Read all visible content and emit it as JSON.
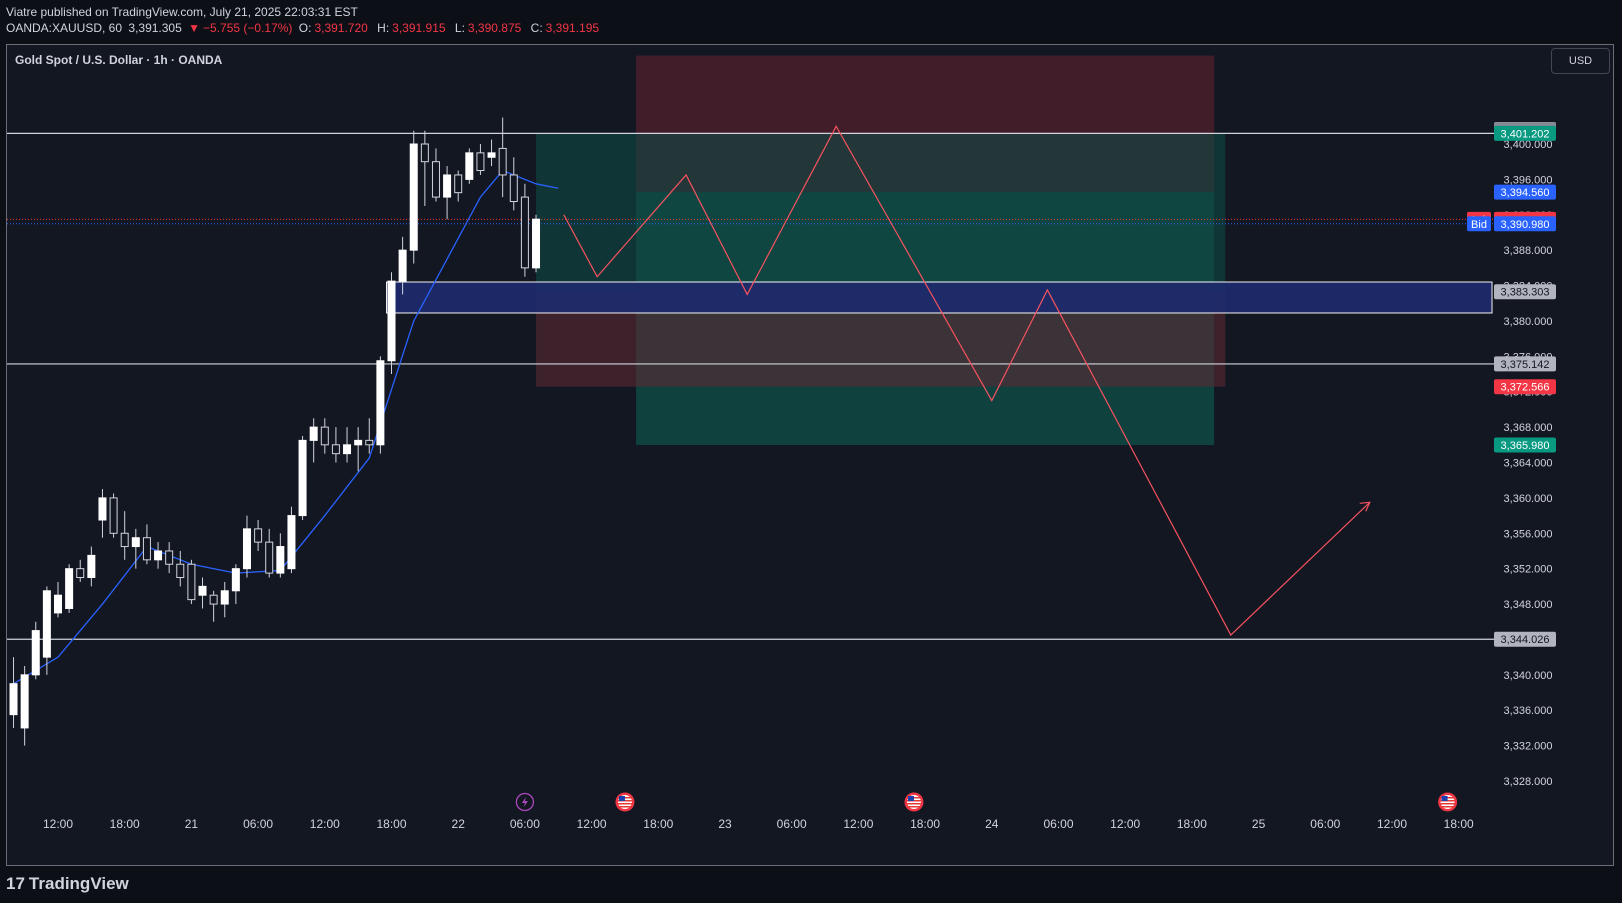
{
  "header": {
    "published_line": "Viatre published on TradingView.com, July 21, 2025 22:03:31 EST",
    "symbol": "OANDA:XAUUSD, 60",
    "price": "3,391.305",
    "change_arrow": "▼",
    "change": "−5.755 (−0.17%)",
    "open_label": "O:",
    "open": "3,391.720",
    "high_label": "H:",
    "high": "3,391.915",
    "low_label": "L:",
    "low": "3,390.875",
    "close_label": "C:",
    "close": "3,391.195"
  },
  "legend": "Gold Spot / U.S. Dollar · 1h · OANDA",
  "currency_button": "USD",
  "footer": {
    "logo": "17",
    "brand": "TradingView"
  },
  "colors": {
    "background": "#131722",
    "up_candle": "#ffffff",
    "ma_line": "#2962ff",
    "path_line": "#f7525f",
    "zone_fill": "#1e2b6b",
    "stop_fill": "#4a1f2a",
    "target_fill": "#0f4a44",
    "ask": "#f23645",
    "bid": "#2962ff",
    "target_label": "#089981"
  },
  "chart_data": {
    "type": "candlestick",
    "symbol": "XAUUSD",
    "timeframe": "1h",
    "ylim": [
      3326,
      3410
    ],
    "y_ticks": [
      3328,
      3332,
      3336,
      3340,
      3344,
      3348,
      3352,
      3356,
      3360,
      3364,
      3368,
      3372,
      3376,
      3380,
      3384,
      3388,
      3392,
      3396,
      3400
    ],
    "x_tick_labels": [
      "12:00",
      "18:00",
      "21",
      "06:00",
      "12:00",
      "18:00",
      "22",
      "06:00",
      "12:00",
      "18:00",
      "23",
      "06:00",
      "12:00",
      "18:00",
      "24",
      "06:00",
      "12:00",
      "18:00",
      "25",
      "06:00",
      "12:00",
      "18:00"
    ],
    "x_ticks_hour_index": [
      0,
      6,
      12,
      18,
      24,
      30,
      36,
      42,
      48,
      54,
      60,
      66,
      72,
      78,
      84,
      90,
      96,
      102,
      108,
      114,
      120,
      126
    ],
    "candles": [
      {
        "t": -4,
        "o": 3335.5,
        "h": 3342.0,
        "l": 3334.0,
        "c": 3339.0
      },
      {
        "t": -3,
        "o": 3334.0,
        "h": 3341.0,
        "l": 3332.0,
        "c": 3340.0
      },
      {
        "t": -2,
        "o": 3340.0,
        "h": 3346.0,
        "l": 3339.5,
        "c": 3345.0
      },
      {
        "t": -1,
        "o": 3342.0,
        "h": 3350.0,
        "l": 3340.0,
        "c": 3349.5
      },
      {
        "t": 0,
        "o": 3347.0,
        "h": 3350.5,
        "l": 3346.5,
        "c": 3349.0
      },
      {
        "t": 1,
        "o": 3347.5,
        "h": 3352.5,
        "l": 3347.0,
        "c": 3352.0
      },
      {
        "t": 2,
        "o": 3352.0,
        "h": 3353.0,
        "l": 3350.5,
        "c": 3351.0
      },
      {
        "t": 3,
        "o": 3351.0,
        "h": 3354.5,
        "l": 3350.0,
        "c": 3353.5
      },
      {
        "t": 4,
        "o": 3357.5,
        "h": 3361.0,
        "l": 3355.5,
        "c": 3360.0
      },
      {
        "t": 5,
        "o": 3360.0,
        "h": 3360.5,
        "l": 3355.5,
        "c": 3356.0
      },
      {
        "t": 6,
        "o": 3356.0,
        "h": 3358.5,
        "l": 3353.0,
        "c": 3354.5
      },
      {
        "t": 7,
        "o": 3354.5,
        "h": 3356.5,
        "l": 3352.0,
        "c": 3355.5
      },
      {
        "t": 8,
        "o": 3355.5,
        "h": 3357.0,
        "l": 3352.5,
        "c": 3353.0
      },
      {
        "t": 9,
        "o": 3353.0,
        "h": 3355.0,
        "l": 3352.0,
        "c": 3354.0
      },
      {
        "t": 10,
        "o": 3354.0,
        "h": 3355.0,
        "l": 3351.5,
        "c": 3352.5
      },
      {
        "t": 11,
        "o": 3352.5,
        "h": 3354.0,
        "l": 3350.0,
        "c": 3351.0
      },
      {
        "t": 12,
        "o": 3352.5,
        "h": 3353.0,
        "l": 3348.0,
        "c": 3348.5
      },
      {
        "t": 13,
        "o": 3349.0,
        "h": 3351.0,
        "l": 3347.5,
        "c": 3350.0
      },
      {
        "t": 14,
        "o": 3349.0,
        "h": 3349.5,
        "l": 3346.0,
        "c": 3348.0
      },
      {
        "t": 15,
        "o": 3348.0,
        "h": 3350.5,
        "l": 3346.5,
        "c": 3349.5
      },
      {
        "t": 16,
        "o": 3349.5,
        "h": 3352.5,
        "l": 3348.0,
        "c": 3352.0
      },
      {
        "t": 17,
        "o": 3352.0,
        "h": 3358.0,
        "l": 3351.0,
        "c": 3356.5
      },
      {
        "t": 18,
        "o": 3356.5,
        "h": 3357.5,
        "l": 3354.0,
        "c": 3355.0
      },
      {
        "t": 19,
        "o": 3355.0,
        "h": 3356.5,
        "l": 3351.0,
        "c": 3351.5
      },
      {
        "t": 20,
        "o": 3351.5,
        "h": 3356.0,
        "l": 3351.0,
        "c": 3354.5
      },
      {
        "t": 21,
        "o": 3352.0,
        "h": 3359.0,
        "l": 3351.5,
        "c": 3358.0
      },
      {
        "t": 22,
        "o": 3358.0,
        "h": 3367.0,
        "l": 3357.5,
        "c": 3366.5
      },
      {
        "t": 23,
        "o": 3366.5,
        "h": 3369.0,
        "l": 3364.0,
        "c": 3368.0
      },
      {
        "t": 24,
        "o": 3368.0,
        "h": 3369.0,
        "l": 3365.0,
        "c": 3366.0
      },
      {
        "t": 25,
        "o": 3366.0,
        "h": 3368.0,
        "l": 3364.0,
        "c": 3365.0
      },
      {
        "t": 26,
        "o": 3365.0,
        "h": 3368.0,
        "l": 3364.0,
        "c": 3366.0
      },
      {
        "t": 27,
        "o": 3366.0,
        "h": 3368.0,
        "l": 3363.0,
        "c": 3366.5
      },
      {
        "t": 28,
        "o": 3366.5,
        "h": 3369.0,
        "l": 3365.0,
        "c": 3366.0
      },
      {
        "t": 29,
        "o": 3366.0,
        "h": 3376.0,
        "l": 3365.0,
        "c": 3375.5
      },
      {
        "t": 30,
        "o": 3375.5,
        "h": 3385.5,
        "l": 3374.0,
        "c": 3384.5
      },
      {
        "t": 31,
        "o": 3384.5,
        "h": 3389.5,
        "l": 3383.0,
        "c": 3388.0
      },
      {
        "t": 32,
        "o": 3388.0,
        "h": 3401.5,
        "l": 3386.5,
        "c": 3400.0
      },
      {
        "t": 33,
        "o": 3400.0,
        "h": 3401.5,
        "l": 3393.0,
        "c": 3398.0
      },
      {
        "t": 34,
        "o": 3398.0,
        "h": 3399.5,
        "l": 3393.5,
        "c": 3394.0
      },
      {
        "t": 35,
        "o": 3394.0,
        "h": 3397.5,
        "l": 3391.5,
        "c": 3396.5
      },
      {
        "t": 36,
        "o": 3396.5,
        "h": 3397.0,
        "l": 3393.5,
        "c": 3394.5
      },
      {
        "t": 37,
        "o": 3396.0,
        "h": 3399.5,
        "l": 3395.5,
        "c": 3399.0
      },
      {
        "t": 38,
        "o": 3399.0,
        "h": 3400.0,
        "l": 3396.5,
        "c": 3397.0
      },
      {
        "t": 39,
        "o": 3398.5,
        "h": 3400.5,
        "l": 3397.5,
        "c": 3399.0
      },
      {
        "t": 40,
        "o": 3399.5,
        "h": 3403.0,
        "l": 3394.0,
        "c": 3396.5
      },
      {
        "t": 41,
        "o": 3396.5,
        "h": 3398.5,
        "l": 3392.5,
        "c": 3393.5
      },
      {
        "t": 42,
        "o": 3394.0,
        "h": 3395.5,
        "l": 3385.0,
        "c": 3386.0
      },
      {
        "t": 43,
        "o": 3386.0,
        "h": 3392.0,
        "l": 3385.5,
        "c": 3391.5
      }
    ],
    "moving_average": [
      {
        "t": -4,
        "y": 3339.0
      },
      {
        "t": 0,
        "y": 3342.0
      },
      {
        "t": 4,
        "y": 3348.0
      },
      {
        "t": 8,
        "y": 3354.5
      },
      {
        "t": 12,
        "y": 3352.5
      },
      {
        "t": 16,
        "y": 3351.5
      },
      {
        "t": 20,
        "y": 3351.8
      },
      {
        "t": 24,
        "y": 3358.0
      },
      {
        "t": 28,
        "y": 3364.5
      },
      {
        "t": 32,
        "y": 3380.0
      },
      {
        "t": 35,
        "y": 3387.0
      },
      {
        "t": 38,
        "y": 3394.0
      },
      {
        "t": 40,
        "y": 3397.0
      },
      {
        "t": 43,
        "y": 3395.5
      },
      {
        "t": 45,
        "y": 3395.0
      }
    ],
    "horizontal_lines": [
      3401.202,
      3375.142,
      3344.026
    ],
    "demand_zone": {
      "from_t": 30,
      "to_t": 147,
      "top": 3384.4,
      "bottom": 3380.9
    },
    "position_1": {
      "from_t": 43,
      "to_t": 105,
      "target": 3401.202,
      "entry": 3383.303,
      "stop": 3372.566
    },
    "position_2": {
      "from_t": 52,
      "to_t": 104,
      "stop": 3410.0,
      "entry": 3394.56,
      "target": 3365.98
    },
    "projection_path": [
      {
        "t": 45.5,
        "y": 3392.0
      },
      {
        "t": 48.5,
        "y": 3385.0
      },
      {
        "t": 56.5,
        "y": 3396.5
      },
      {
        "t": 62,
        "y": 3383.0
      },
      {
        "t": 70,
        "y": 3402.0
      },
      {
        "t": 84,
        "y": 3371.0
      },
      {
        "t": 89,
        "y": 3383.5
      },
      {
        "t": 105.5,
        "y": 3344.5
      },
      {
        "t": 118,
        "y": 3359.5
      }
    ],
    "price_labels": [
      {
        "text": "3,401.640",
        "y": 3401.64,
        "color": "#b2b5be",
        "text_color": "#131722"
      },
      {
        "text": "3,401.629",
        "y": 3401.629,
        "color": "#868993",
        "text_color": "#131722"
      },
      {
        "text": "3,401.202",
        "y": 3401.202,
        "color": "#089981",
        "text_color": "#ffffff"
      },
      {
        "text": "3,394.560",
        "y": 3394.56,
        "color": "#2962ff",
        "text_color": "#ffffff"
      },
      {
        "text": "3,391.480",
        "y": 3391.48,
        "color": "#f23645",
        "text_color": "#ffffff",
        "tag": "Ask"
      },
      {
        "text": "3,391.195",
        "y": 3391.195,
        "color": "#f23645",
        "text_color": "#ffffff"
      },
      {
        "text": "3,390.980",
        "y": 3390.98,
        "color": "#2962ff",
        "text_color": "#ffffff",
        "tag": "Bid"
      },
      {
        "text": "3,383.303",
        "y": 3383.303,
        "color": "#b2b5be",
        "text_color": "#131722"
      },
      {
        "text": "3,375.142",
        "y": 3375.142,
        "color": "#b2b5be",
        "text_color": "#131722"
      },
      {
        "text": "3,372.566",
        "y": 3372.566,
        "color": "#f23645",
        "text_color": "#ffffff"
      },
      {
        "text": "3,365.980",
        "y": 3365.98,
        "color": "#089981",
        "text_color": "#ffffff"
      },
      {
        "text": "3,344.026",
        "y": 3344.026,
        "color": "#b2b5be",
        "text_color": "#131722"
      }
    ],
    "events": [
      {
        "t": 42,
        "kind": "lightning"
      },
      {
        "t": 51,
        "kind": "us-flag"
      },
      {
        "t": 77,
        "kind": "us-flag"
      },
      {
        "t": 125,
        "kind": "us-flag"
      }
    ]
  }
}
